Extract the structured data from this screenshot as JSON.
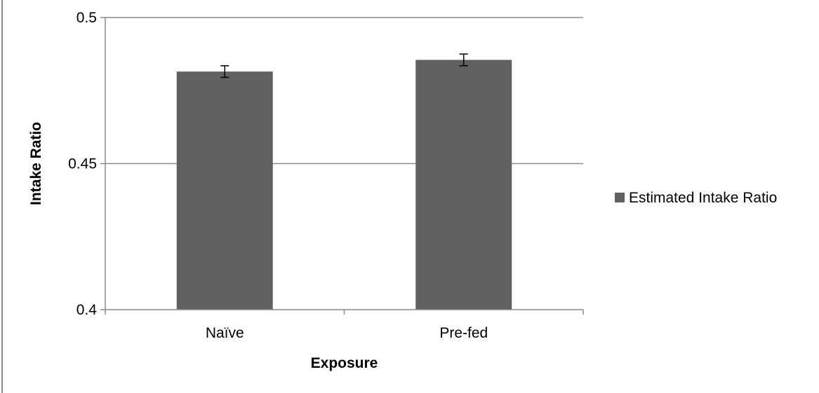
{
  "chart_data": {
    "type": "bar",
    "categories": [
      "Naïve",
      "Pre-fed"
    ],
    "series": [
      {
        "name": "Estimated Intake Ratio",
        "values": [
          0.4815,
          0.4855
        ],
        "error": [
          0.002,
          0.002
        ],
        "color": "#606060"
      }
    ],
    "xlabel": "Exposure",
    "ylabel": "Intake Ratio",
    "ylim": [
      0.4,
      0.5
    ],
    "yticks": [
      0.4,
      0.45,
      0.5
    ],
    "ytick_labels": [
      "0.4",
      "0.45",
      "0.5"
    ],
    "grid": true,
    "legend_position": "right"
  }
}
